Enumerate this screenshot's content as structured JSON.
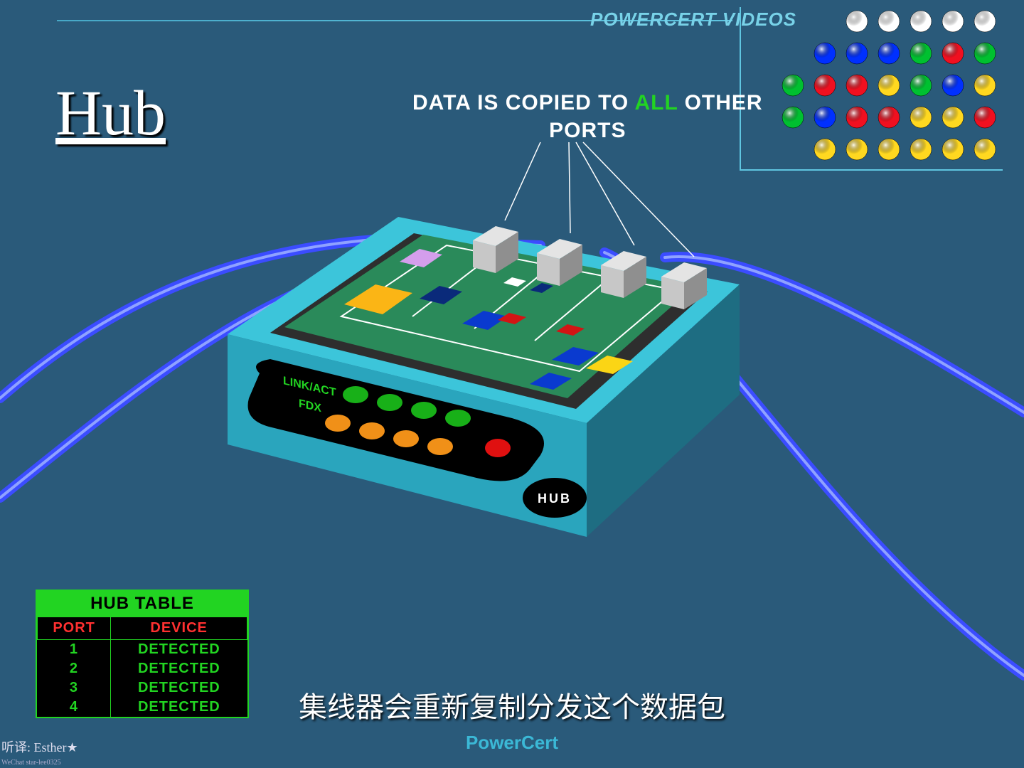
{
  "brand": "POWERCERT VIDEOS",
  "title": "Hub",
  "annotation": {
    "pre": "DATA IS COPIED TO ",
    "highlight": "ALL",
    "post": " OTHER",
    "line2": "PORTS"
  },
  "dotgrid": {
    "radius": 15,
    "spacing": 45,
    "rows": [
      {
        "offset": 3,
        "colors": [
          "#ffffff",
          "#ffffff",
          "#ffffff",
          "#ffffff",
          "#ffffff"
        ]
      },
      {
        "offset": 2,
        "colors": [
          "#0030ff",
          "#0030ff",
          "#0030ff",
          "#00c030",
          "#f01020",
          "#00c030"
        ]
      },
      {
        "offset": 1,
        "colors": [
          "#00c030",
          "#f01020",
          "#f01020",
          "#ffd820",
          "#00c030",
          "#0030ff",
          "#ffd820"
        ]
      },
      {
        "offset": 1,
        "colors": [
          "#00c030",
          "#0030ff",
          "#f01020",
          "#f01020",
          "#ffd820",
          "#ffd820",
          "#f01020"
        ]
      },
      {
        "offset": 2,
        "colors": [
          "#ffd820",
          "#ffd820",
          "#ffd820",
          "#ffd820",
          "#ffd820",
          "#ffd820"
        ]
      }
    ]
  },
  "device": {
    "case_top": "#3cc5da",
    "case_front": "#2aa5bd",
    "case_side": "#1e6d82",
    "pcb": "#2a8a5a",
    "pcb_trace": "#ffffff",
    "pcb_ic": "#fbb515",
    "port_fill": "#c7c7c7",
    "port_side": "#8f8f8f",
    "panel_bg": "#000000",
    "panel_text": "#22d422",
    "led_green": "#18b018",
    "led_orange": "#f09018",
    "led_red": "#e01010",
    "hub_badge_text": "HUB",
    "panel_label1": "LINK/ACT",
    "panel_label2": "FDX",
    "cable_stroke": "#3b4cff",
    "cable_hilite": "#9fb2ff"
  },
  "table": {
    "title": "HUB TABLE",
    "columns": [
      "PORT",
      "DEVICE"
    ],
    "rows": [
      [
        "1",
        "DETECTED"
      ],
      [
        "2",
        "DETECTED"
      ],
      [
        "3",
        "DETECTED"
      ],
      [
        "4",
        "DETECTED"
      ]
    ]
  },
  "subtitle": "集线器会重新复制分发这个数据包",
  "footer_brand": "PowerCert",
  "credit": {
    "line1": "听译: Esther★",
    "line2": "WeChat  star-lee0325"
  }
}
